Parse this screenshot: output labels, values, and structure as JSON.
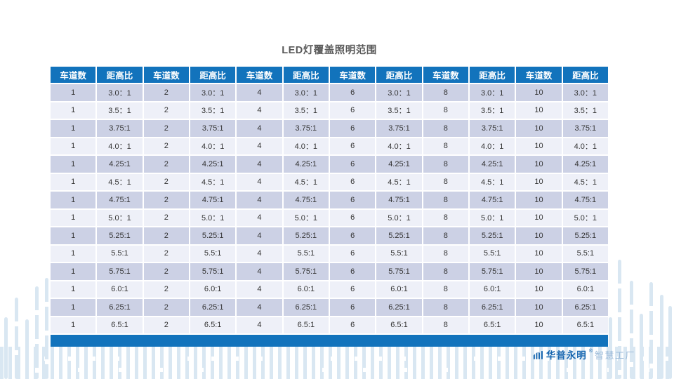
{
  "title": "LED灯覆盖照明范围",
  "table": {
    "header": [
      "车道数",
      "距高比",
      "车道数",
      "距高比",
      "车道数",
      "距高比",
      "车道数",
      "距高比",
      "车道数",
      "距高比",
      "车道数",
      "距高比"
    ],
    "lanes": [
      "1",
      "2",
      "4",
      "6",
      "8",
      "10"
    ],
    "ratios": [
      "3.0：1",
      "3.5：1",
      "3.75:1",
      "4.0：1",
      "4.25:1",
      "4.5：1",
      "4.75:1",
      "5.0：1",
      "5.25:1",
      "5.5:1",
      "5.75:1",
      "6.0:1",
      "6.25:1",
      "6.5:1"
    ]
  },
  "logo": {
    "brand": "华普永明",
    "mark": "®",
    "suffix": "智慧工厂"
  },
  "colors": {
    "accent_blue": "#1273BC",
    "row_shaded": "#CCD1E5",
    "row_plain": "#EEF0F8",
    "cell_text": "#333333",
    "title_text": "#595959",
    "decor_bar": "#D9E7F2",
    "brand_blue": "#1565AF",
    "brand_light": "#9DBBD9"
  }
}
